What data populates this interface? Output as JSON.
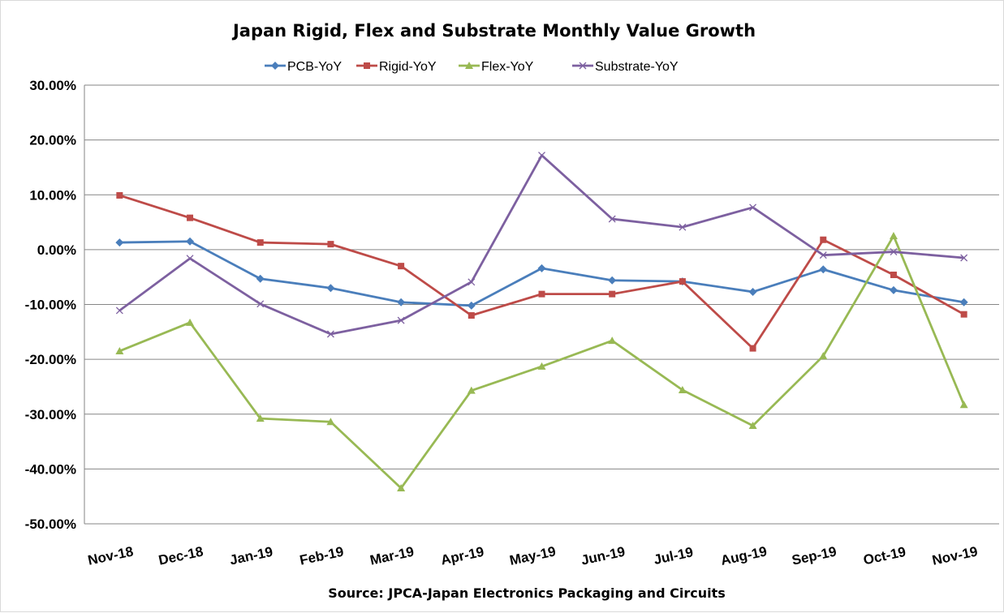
{
  "chart_data": {
    "type": "line",
    "title": "Japan Rigid, Flex and Substrate Monthly Value Growth",
    "source": "Source: JPCA-Japan Electronics Packaging and Circuits",
    "categories": [
      "Nov-18",
      "Dec-18",
      "Jan-19",
      "Feb-19",
      "Mar-19",
      "Apr-19",
      "May-19",
      "Jun-19",
      "Jul-19",
      "Aug-19",
      "Sep-19",
      "Oct-19",
      "Nov-19"
    ],
    "ylim": [
      -50,
      30
    ],
    "yticks": [
      30,
      20,
      10,
      0,
      -10,
      -20,
      -30,
      -40,
      -50
    ],
    "ytick_labels": [
      "30.00%",
      "20.00%",
      "10.00%",
      "0.00%",
      "-10.00%",
      "-20.00%",
      "-30.00%",
      "-40.00%",
      "-50.00%"
    ],
    "grid": true,
    "legend": "top",
    "series": [
      {
        "name": "PCB-YoY",
        "color": "#4a7ebb",
        "marker": "diamond",
        "values": [
          1.3,
          1.5,
          -5.3,
          -7.0,
          -9.6,
          -10.2,
          -3.4,
          -5.6,
          -5.8,
          -7.7,
          -3.6,
          -7.4,
          -9.6
        ]
      },
      {
        "name": "Rigid-YoY",
        "color": "#be4b48",
        "marker": "square",
        "values": [
          9.9,
          5.8,
          1.3,
          1.0,
          -3.0,
          -12.0,
          -8.1,
          -8.1,
          -5.8,
          -18.0,
          1.8,
          -4.6,
          -11.8
        ]
      },
      {
        "name": "Flex-YoY",
        "color": "#98b954",
        "marker": "triangle",
        "values": [
          -18.5,
          -13.3,
          -30.8,
          -31.4,
          -43.5,
          -25.7,
          -21.3,
          -16.6,
          -25.6,
          -32.1,
          -19.4,
          2.5,
          -28.3
        ]
      },
      {
        "name": "Substrate-YoY",
        "color": "#7d60a0",
        "marker": "x",
        "values": [
          -11.1,
          -1.6,
          -9.9,
          -15.4,
          -12.9,
          -5.9,
          17.2,
          5.6,
          4.1,
          7.7,
          -1.0,
          -0.4,
          -1.5
        ]
      }
    ]
  }
}
